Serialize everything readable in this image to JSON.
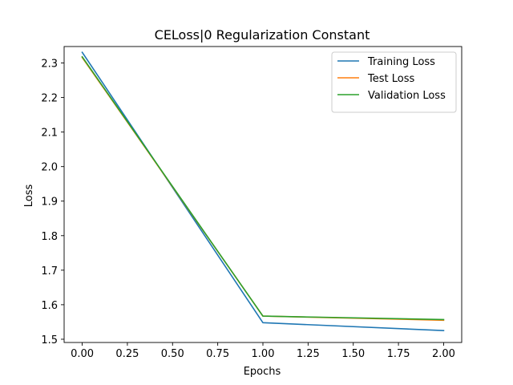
{
  "chart_data": {
    "type": "line",
    "title": "CELoss|0 Regularization Constant",
    "xlabel": "Epochs",
    "ylabel": "Loss",
    "x": [
      0.0,
      1.0,
      2.0
    ],
    "xlim": [
      -0.1,
      2.1
    ],
    "ylim": [
      1.4906,
      2.3477
    ],
    "xticks": [
      0.0,
      0.25,
      0.5,
      0.75,
      1.0,
      1.25,
      1.5,
      1.75,
      2.0
    ],
    "xtick_labels": [
      "0.00",
      "0.25",
      "0.50",
      "0.75",
      "1.00",
      "1.25",
      "1.50",
      "1.75",
      "2.00"
    ],
    "yticks": [
      1.5,
      1.6,
      1.7,
      1.8,
      1.9,
      2.0,
      2.1,
      2.2,
      2.3
    ],
    "ytick_labels": [
      "1.5",
      "1.6",
      "1.7",
      "1.8",
      "1.9",
      "2.0",
      "2.1",
      "2.2",
      "2.3"
    ],
    "grid": false,
    "legend_position": "top-right",
    "series": [
      {
        "name": "Training Loss",
        "color": "#1f77b4",
        "values": [
          2.331,
          1.548,
          1.525
        ]
      },
      {
        "name": "Test Loss",
        "color": "#ff7f0e",
        "values": [
          2.316,
          1.567,
          1.555
        ]
      },
      {
        "name": "Validation Loss",
        "color": "#2ca02c",
        "values": [
          2.318,
          1.567,
          1.557
        ]
      }
    ]
  }
}
